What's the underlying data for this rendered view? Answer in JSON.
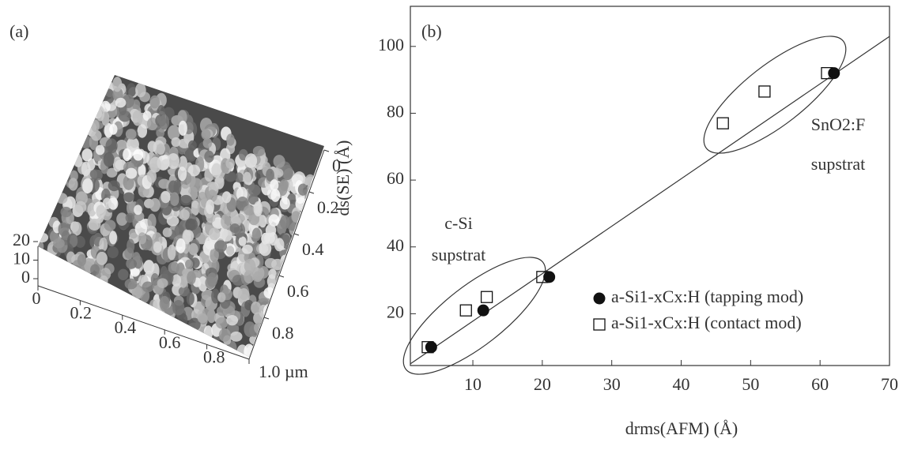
{
  "chart_data": [
    {
      "type": "surface",
      "title": "(a)",
      "xticks": [
        0,
        0.2,
        0.4,
        0.6,
        0.8,
        {
          "value": 1.0,
          "label": "1.0 µm"
        }
      ],
      "xlim": [
        0,
        1.0
      ],
      "yticks": [
        0,
        0.2,
        0.4,
        0.6,
        0.8
      ],
      "ylim": [
        0,
        1.0
      ],
      "zticks": [
        0,
        10,
        20
      ],
      "zlim": [
        0,
        20
      ]
    },
    {
      "type": "scatter",
      "title": "(b)",
      "xlabel": "drms(AFM) (Å)",
      "ylabel": "ds(SE) (Å)",
      "xlim": [
        1,
        70
      ],
      "ylim": [
        4.5,
        112
      ],
      "xticks": [
        10,
        20,
        30,
        40,
        50,
        60,
        70
      ],
      "yticks": [
        20,
        40,
        60,
        80,
        100
      ],
      "series": [
        {
          "name": "a-Si1-xCx:H (tapping mod)",
          "color": "#111111",
          "marker": "filled-circle",
          "x": [
            4,
            11.5,
            21,
            62
          ],
          "values": [
            10,
            21,
            31,
            92
          ]
        },
        {
          "name": "a-Si1-xCx:H (contact mod)",
          "color": "#111111",
          "marker": "open-square",
          "x": [
            3.5,
            9,
            12,
            20,
            46,
            52,
            61
          ],
          "values": [
            10,
            21,
            25,
            31,
            77,
            86.5,
            92
          ]
        }
      ],
      "fit": {
        "x": [
          1,
          70
        ],
        "values": [
          5,
          103
        ]
      },
      "annotations": [
        "c-Si",
        "supstrat",
        "SnO2:F",
        "supstrat"
      ]
    }
  ]
}
